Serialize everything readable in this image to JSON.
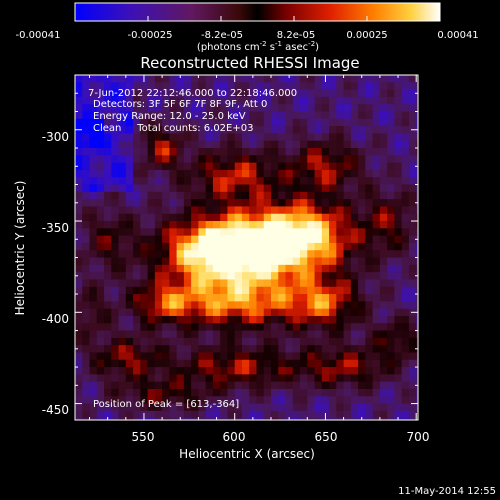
{
  "colorbar": {
    "tick_labels": [
      "-0.00041",
      "-0.00025",
      "-8.2e-05",
      "8.2e-05",
      "0.00025",
      "0.00041"
    ],
    "units_line1": "(photons cm",
    "units_sup1": "-2",
    "units_mid": " s",
    "units_sup2": "-1",
    "units_end": " asec",
    "units_sup3": "-2",
    "units_close": ")"
  },
  "image": {
    "info_lines": [
      "7-Jun-2012 22:12:46.000 to 22:18:46.000",
      "Detectors: 3F 5F 6F 7F 8F 9F, Att 0",
      "Energy Range: 12.0 - 25.0 keV",
      "Clean     Total counts: 6.02E+03"
    ],
    "peak_label": "Position of Peak = [613,-364]"
  },
  "footer": {
    "date": "11-May-2014 12:55"
  },
  "chart_data": {
    "type": "heatmap",
    "title": "Reconstructed RHESSI Image",
    "xlabel": "Heliocentric X (arcsec)",
    "ylabel": "Heliocentric Y (arcsec)",
    "xlim": [
      512,
      701
    ],
    "ylim": [
      -459,
      -270
    ],
    "x_ticks": [
      550,
      600,
      650,
      700
    ],
    "y_ticks": [
      -300,
      -350,
      -400,
      -450
    ],
    "color_range": [
      -0.00041,
      0.00041
    ],
    "peak": [
      613,
      -364
    ],
    "colors": {
      "background": "#000000",
      "text": "#ffffff"
    }
  }
}
